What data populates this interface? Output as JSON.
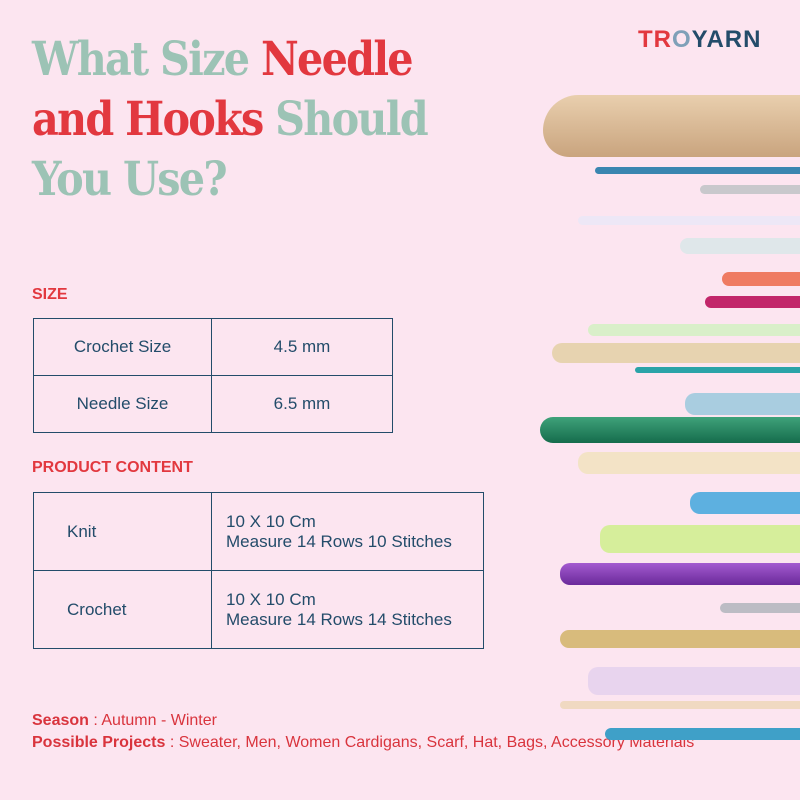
{
  "brand": {
    "logo_left": "TR",
    "logo_o": "O",
    "logo_right": "YARN"
  },
  "title": {
    "part1": "What Size ",
    "part2": "Needle",
    "part3": "and Hooks",
    "part4": " Should",
    "part5": "You Use?"
  },
  "size_section": {
    "heading": "SIZE",
    "rows": [
      {
        "label": "Crochet Size",
        "value": "4.5 mm"
      },
      {
        "label": "Needle Size",
        "value": "6.5 mm"
      }
    ]
  },
  "content_section": {
    "heading": "PRODUCT CONTENT",
    "rows": [
      {
        "label": "Knit",
        "line1": "10 X 10 Cm",
        "line2": "Measure 14 Rows 10 Stitches"
      },
      {
        "label": "Crochet",
        "line1": "10 X 10 Cm",
        "line2": "Measure 14 Rows 14 Stitches"
      }
    ]
  },
  "footer": {
    "season_label": "Season",
    "season_value": " : Autumn - Winter",
    "projects_label": "Possible Projects",
    "projects_value": " : Sweater, Men, Women Cardigans, Scarf, Hat, Bags, Accessory Materials"
  },
  "colors": {
    "background": "#fce5f0",
    "teal": "#9cc3b5",
    "red": "#e2383f",
    "navy": "#234c6a"
  }
}
